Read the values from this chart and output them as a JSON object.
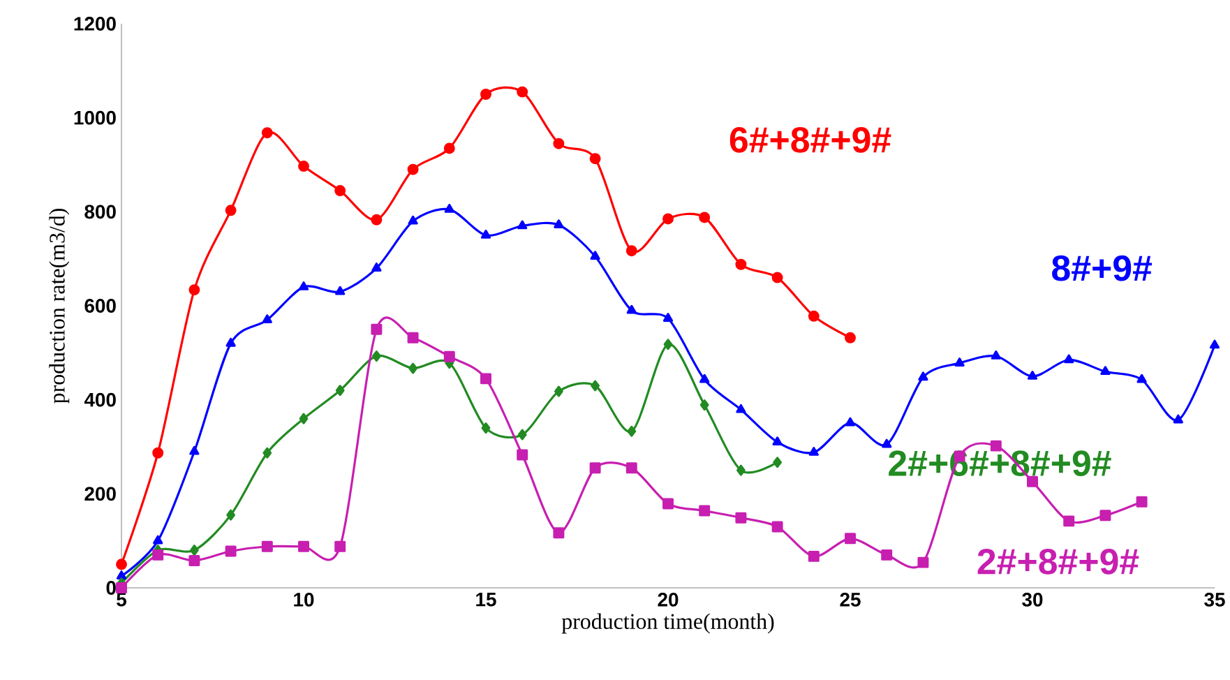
{
  "chart_data": {
    "type": "line",
    "xlabel": "production time(month)",
    "ylabel": "production rate(m3/d)",
    "xlim": [
      5,
      35
    ],
    "ylim": [
      0,
      1200
    ],
    "xticks": [
      5,
      10,
      15,
      20,
      25,
      30,
      35
    ],
    "yticks": [
      0,
      200,
      400,
      600,
      800,
      1000,
      1200
    ],
    "grid": false,
    "legend": false,
    "line_style": "solid",
    "x": [
      5,
      6,
      7,
      8,
      9,
      10,
      11,
      12,
      13,
      14,
      15,
      16,
      17,
      18,
      19,
      20,
      21,
      22,
      23,
      24,
      25,
      26,
      27,
      28,
      29,
      30,
      31,
      32,
      33,
      34,
      35
    ],
    "series": [
      {
        "name": "6#+8#+9#",
        "color": "#ff0000",
        "marker": "circle",
        "values": [
          50,
          287,
          634,
          803,
          968,
          897,
          845,
          783,
          890,
          935,
          1050,
          1055,
          945,
          913,
          717,
          785,
          788,
          688,
          660,
          578,
          532,
          null,
          null,
          null,
          null,
          null,
          null,
          null,
          null,
          null,
          null
        ]
      },
      {
        "name": "8#+9#",
        "color": "#0000ff",
        "marker": "triangle",
        "values": [
          25,
          100,
          290,
          520,
          570,
          640,
          630,
          680,
          780,
          805,
          750,
          770,
          772,
          705,
          590,
          573,
          443,
          379,
          310,
          288,
          351,
          305,
          448,
          478,
          493,
          450,
          485,
          460,
          443,
          357,
          516
        ]
      },
      {
        "name": "2#+6#+8#+9#",
        "color": "#228b22",
        "marker": "diamond",
        "values": [
          10,
          80,
          80,
          155,
          287,
          360,
          420,
          493,
          467,
          478,
          340,
          326,
          418,
          430,
          333,
          518,
          389,
          250,
          267,
          null,
          null,
          null,
          null,
          null,
          null,
          null,
          null,
          null,
          null,
          null,
          null
        ]
      },
      {
        "name": "2#+8#+9#",
        "color": "#c71fb0",
        "marker": "square",
        "values": [
          0,
          70,
          58,
          78,
          88,
          88,
          88,
          550,
          532,
          492,
          445,
          283,
          117,
          255,
          255,
          179,
          164,
          149,
          130,
          67,
          105,
          70,
          54,
          280,
          302,
          226,
          142,
          154,
          183,
          null,
          null
        ]
      }
    ]
  }
}
